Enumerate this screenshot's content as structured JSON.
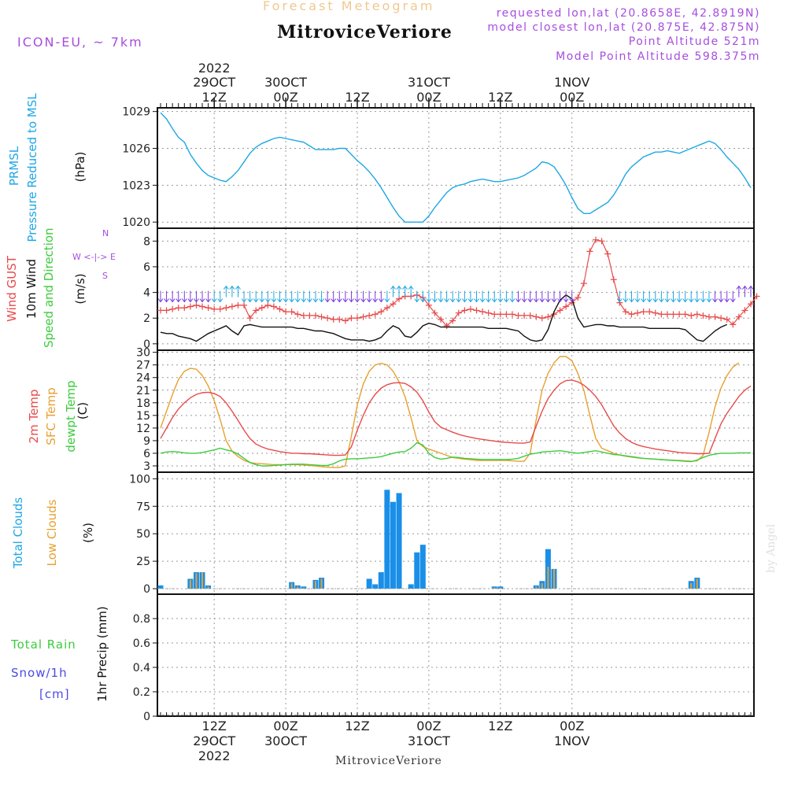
{
  "header": {
    "subtitle": "Forecast Meteogram",
    "title": "MitroviceVeriore",
    "model": "ICON-EU, ~ 7km",
    "requested": "requested lon,lat (20.8658E, 42.8919N)",
    "closest": "model closest lon,lat (20.875E, 42.875N)",
    "point_alt": "Point Altitude 521m",
    "model_alt": "Model Point Altitude 598.375m"
  },
  "footer": {
    "name": "MitroviceVeriore",
    "credit": "by Angel"
  },
  "time_axis": {
    "hour_step": 3,
    "major": [
      {
        "t": 9,
        "hour": "12Z",
        "date": "29OCT",
        "year": "2022"
      },
      {
        "t": 21,
        "hour": "00Z",
        "date": "30OCT",
        "year": ""
      },
      {
        "t": 33,
        "hour": "12Z",
        "date": "",
        "year": ""
      },
      {
        "t": 45,
        "hour": "00Z",
        "date": "31OCT",
        "year": ""
      },
      {
        "t": 57,
        "hour": "12Z",
        "date": "",
        "year": ""
      },
      {
        "t": 69,
        "hour": "00Z",
        "date": "1NOV",
        "year": ""
      }
    ]
  },
  "panel_labels": {
    "pressure": {
      "l1": "PRMSL",
      "l2": "Pressure Reduced to MSL",
      "unit": "(hPa)"
    },
    "wind": {
      "l1": "Wind GUST",
      "l2": "10m Wind",
      "l3": "Speed and Direction",
      "unit": "(m/s)",
      "compass_n": "N",
      "compass_s": "S",
      "compass_we": "W <-|-> E"
    },
    "temp": {
      "l1": "2m Temp",
      "l2": "SFC Temp",
      "l3": "dewpt Temp",
      "unit": "(C)"
    },
    "clouds": {
      "l1": "Total Clouds",
      "l2": "Low Clouds",
      "unit": "(%)"
    },
    "precip": {
      "l1": "Total  Rain",
      "l2": "Snow/1h",
      "l3": "[cm]",
      "unit": "1hr Precip (mm)"
    }
  },
  "colors": {
    "pressure": "#1ea7e4",
    "gust": "#e84a4a",
    "wind": "#111111",
    "t2m": "#e84a4a",
    "sfc": "#e8a030",
    "dewpt": "#3ccc3c",
    "total_clouds": "#1a8fe8",
    "low_clouds": "#e8a030",
    "rain": "#3ccc3c",
    "snow": "#4a4ae8"
  },
  "chart_data": [
    {
      "type": "line",
      "name": "pressure",
      "ylabel": "PRMSL Pressure Reduced to MSL (hPa)",
      "ylim": [
        1019.5,
        1029.3
      ],
      "yticks": [
        1020,
        1023,
        1026,
        1029
      ],
      "series": [
        {
          "name": "PRMSL",
          "values": [
            1028.9,
            1028.4,
            1027.6,
            1026.9,
            1026.5,
            1025.5,
            1024.8,
            1024.2,
            1023.8,
            1023.6,
            1023.4,
            1023.3,
            1023.7,
            1024.2,
            1024.9,
            1025.6,
            1026.1,
            1026.4,
            1026.6,
            1026.8,
            1026.9,
            1026.8,
            1026.7,
            1026.6,
            1026.5,
            1026.2,
            1025.9,
            1025.9,
            1025.9,
            1025.9,
            1026.0,
            1026.0,
            1025.5,
            1025.0,
            1024.6,
            1024.1,
            1023.5,
            1022.8,
            1022.0,
            1021.2,
            1020.5,
            1020.0,
            1020.0,
            1020.0,
            1020.0,
            1020.5,
            1021.2,
            1021.8,
            1022.4,
            1022.8,
            1023.0,
            1023.1,
            1023.3,
            1023.4,
            1023.5,
            1023.4,
            1023.3,
            1023.3,
            1023.4,
            1023.5,
            1023.6,
            1023.8,
            1024.1,
            1024.4,
            1024.9,
            1024.8,
            1024.5,
            1023.8,
            1023.0,
            1022.0,
            1021.1,
            1020.7,
            1020.7,
            1021.0,
            1021.3,
            1021.6,
            1022.2,
            1023.0,
            1023.9,
            1024.5,
            1024.9,
            1025.3,
            1025.5,
            1025.7,
            1025.7,
            1025.8,
            1025.7,
            1025.6,
            1025.8,
            1026.0,
            1026.2,
            1026.4,
            1026.6,
            1026.4,
            1025.9,
            1025.3,
            1024.8,
            1024.3,
            1023.6,
            1022.8
          ]
        }
      ]
    },
    {
      "type": "line",
      "name": "wind",
      "ylabel": "Wind GUST / 10m Wind Speed and Direction (m/s)",
      "ylim": [
        -0.5,
        9
      ],
      "yticks": [
        0,
        2,
        4,
        6,
        8
      ],
      "series": [
        {
          "name": "Wind GUST",
          "values": [
            2.6,
            2.6,
            2.7,
            2.8,
            2.8,
            2.9,
            3.0,
            2.9,
            2.8,
            2.7,
            2.7,
            2.8,
            2.9,
            3.0,
            3.0,
            2.0,
            2.6,
            2.8,
            3.0,
            2.9,
            2.7,
            2.5,
            2.5,
            2.3,
            2.2,
            2.2,
            2.2,
            2.1,
            2.0,
            1.9,
            1.9,
            1.8,
            2.0,
            2.0,
            2.1,
            2.2,
            2.3,
            2.5,
            2.8,
            3.1,
            3.5,
            3.7,
            3.7,
            3.8,
            3.6,
            3.0,
            2.4,
            1.9,
            1.4,
            1.8,
            2.4,
            2.6,
            2.7,
            2.6,
            2.5,
            2.4,
            2.3,
            2.3,
            2.3,
            2.3,
            2.2,
            2.2,
            2.2,
            2.1,
            2.0,
            2.1,
            2.3,
            2.6,
            2.9,
            3.2,
            3.6,
            4.7,
            7.2,
            8.1,
            8.0,
            7.0,
            5.0,
            3.2,
            2.5,
            2.3,
            2.4,
            2.5,
            2.5,
            2.4,
            2.3,
            2.3,
            2.3,
            2.3,
            2.3,
            2.2,
            2.3,
            2.2,
            2.1,
            2.1,
            2.0,
            1.9,
            1.5,
            2.1,
            2.6,
            3.1,
            3.7
          ]
        },
        {
          "name": "10m Wind",
          "values": [
            0.9,
            0.8,
            0.8,
            0.6,
            0.5,
            0.4,
            0.2,
            0.5,
            0.8,
            1.0,
            1.2,
            1.4,
            1.0,
            0.7,
            1.4,
            1.5,
            1.4,
            1.3,
            1.3,
            1.3,
            1.3,
            1.3,
            1.3,
            1.2,
            1.2,
            1.1,
            1.0,
            1.0,
            0.9,
            0.8,
            0.6,
            0.4,
            0.3,
            0.3,
            0.3,
            0.2,
            0.3,
            0.5,
            1.0,
            1.4,
            1.2,
            0.6,
            0.5,
            0.9,
            1.4,
            1.6,
            1.5,
            1.3,
            1.3,
            1.3,
            1.3,
            1.3,
            1.3,
            1.3,
            1.3,
            1.2,
            1.2,
            1.2,
            1.2,
            1.1,
            1.0,
            0.6,
            0.3,
            0.2,
            0.3,
            1.1,
            2.5,
            3.4,
            3.8,
            3.5,
            2.0,
            1.3,
            1.4,
            1.5,
            1.5,
            1.4,
            1.4,
            1.3,
            1.3,
            1.3,
            1.3,
            1.3,
            1.2,
            1.2,
            1.2,
            1.2,
            1.2,
            1.2,
            1.1,
            0.7,
            0.3,
            0.2,
            0.6,
            1.0,
            1.3,
            1.5
          ]
        }
      ]
    },
    {
      "type": "line",
      "name": "temperature",
      "ylabel": "2m Temp / SFC Temp / dewpt Temp (C)",
      "ylim": [
        1.5,
        30.5
      ],
      "yticks": [
        3,
        6,
        9,
        12,
        15,
        18,
        21,
        24,
        27,
        30
      ],
      "series": [
        {
          "name": "2m Temp",
          "values": [
            9.5,
            12.0,
            14.5,
            16.5,
            18.0,
            19.2,
            20.0,
            20.4,
            20.5,
            20.2,
            19.5,
            18.0,
            16.0,
            13.8,
            11.5,
            9.5,
            8.2,
            7.5,
            7.0,
            6.7,
            6.4,
            6.2,
            6.0,
            6.0,
            5.9,
            5.9,
            5.8,
            5.7,
            5.6,
            5.5,
            5.5,
            5.6,
            7.5,
            11.5,
            15.0,
            18.0,
            20.0,
            21.5,
            22.3,
            22.7,
            22.8,
            22.6,
            21.8,
            20.5,
            18.5,
            15.8,
            13.5,
            12.2,
            11.6,
            11.0,
            10.5,
            10.1,
            9.8,
            9.5,
            9.3,
            9.1,
            8.9,
            8.7,
            8.6,
            8.5,
            8.4,
            8.4,
            8.7,
            12.5,
            16.0,
            19.0,
            21.0,
            22.5,
            23.3,
            23.4,
            23.0,
            22.2,
            21.0,
            19.5,
            17.5,
            15.0,
            12.5,
            10.8,
            9.5,
            8.6,
            8.0,
            7.6,
            7.3,
            7.0,
            6.8,
            6.6,
            6.4,
            6.2,
            6.1,
            6.0,
            5.9,
            5.9,
            6.0,
            9.5,
            13.0,
            15.5,
            17.5,
            19.5,
            21.0,
            22.0
          ]
        },
        {
          "name": "SFC Temp",
          "values": [
            12.0,
            16.0,
            20.0,
            23.5,
            25.5,
            26.2,
            26.0,
            24.5,
            22.0,
            18.5,
            14.0,
            9.0,
            6.5,
            5.2,
            4.3,
            3.8,
            3.6,
            3.5,
            3.4,
            3.3,
            3.3,
            3.3,
            3.3,
            3.3,
            3.2,
            3.1,
            3.0,
            2.8,
            2.7,
            2.6,
            2.6,
            3.0,
            10.0,
            17.5,
            22.5,
            25.5,
            27.0,
            27.4,
            27.0,
            25.5,
            23.0,
            19.5,
            14.5,
            9.0,
            7.6,
            7.0,
            6.5,
            6.0,
            5.5,
            5.0,
            4.8,
            4.6,
            4.5,
            4.3,
            4.3,
            4.3,
            4.3,
            4.3,
            4.3,
            4.2,
            4.1,
            4.1,
            6.0,
            14.0,
            21.0,
            25.0,
            27.5,
            29.0,
            29.0,
            28.0,
            25.0,
            21.0,
            15.0,
            9.5,
            7.2,
            6.6,
            6.0,
            5.6,
            5.3,
            5.1,
            4.9,
            4.8,
            4.7,
            4.6,
            4.5,
            4.4,
            4.3,
            4.3,
            4.2,
            4.1,
            4.2,
            5.5,
            11.0,
            17.0,
            21.5,
            24.5,
            26.5,
            27.5
          ]
        },
        {
          "name": "dewpt Temp",
          "values": [
            6.0,
            6.3,
            6.4,
            6.3,
            6.1,
            6.0,
            6.0,
            6.2,
            6.5,
            6.8,
            7.2,
            6.8,
            6.5,
            5.8,
            4.8,
            3.8,
            3.3,
            3.0,
            3.0,
            3.1,
            3.2,
            3.3,
            3.4,
            3.4,
            3.4,
            3.3,
            3.2,
            3.1,
            3.1,
            3.5,
            4.2,
            4.6,
            4.7,
            4.7,
            4.8,
            4.9,
            5.0,
            5.2,
            5.6,
            6.0,
            6.3,
            6.4,
            7.2,
            8.5,
            8.0,
            6.0,
            5.0,
            4.6,
            4.8,
            5.1,
            5.0,
            4.8,
            4.7,
            4.6,
            4.5,
            4.5,
            4.5,
            4.5,
            4.5,
            4.6,
            4.8,
            5.3,
            5.8,
            6.0,
            6.3,
            6.4,
            6.5,
            6.6,
            6.4,
            6.2,
            6.0,
            6.2,
            6.4,
            6.6,
            6.3,
            6.0,
            5.7,
            5.6,
            5.4,
            5.2,
            5.0,
            4.8,
            4.7,
            4.6,
            4.5,
            4.4,
            4.3,
            4.2,
            4.1,
            4.0,
            4.4,
            5.0,
            5.5,
            5.8,
            6.0,
            6.0,
            6.0,
            6.1,
            6.1,
            6.1
          ]
        }
      ]
    },
    {
      "type": "bar",
      "name": "clouds",
      "ylabel": "Total Clouds / Low Clouds (%)",
      "ylim": [
        -5,
        106
      ],
      "yticks": [
        0,
        25,
        50,
        75,
        100
      ],
      "series": [
        {
          "name": "Total Clouds",
          "values": [
            3,
            0,
            0,
            0,
            0,
            9,
            15,
            15,
            3,
            0,
            0,
            0,
            0,
            0,
            0,
            0,
            0,
            0,
            0,
            0,
            0,
            0,
            6,
            3,
            2,
            0,
            8,
            10,
            0,
            0,
            0,
            0,
            0,
            0,
            0,
            9,
            4,
            15,
            90,
            79,
            87,
            0,
            4,
            33,
            40,
            0,
            0,
            0,
            0,
            0,
            0,
            0,
            0,
            0,
            0,
            0,
            2,
            2,
            0,
            0,
            0,
            0,
            0,
            3,
            7,
            36,
            18,
            0,
            0,
            0,
            0,
            0,
            0,
            0,
            0,
            0,
            0,
            0,
            0,
            0,
            0,
            0,
            0,
            0,
            0,
            0,
            0,
            0,
            0,
            7,
            10,
            0,
            0,
            0,
            0,
            0,
            0,
            0,
            0,
            0
          ]
        },
        {
          "name": "Low Clouds",
          "values": [
            0,
            0,
            0,
            0,
            0,
            8,
            14,
            15,
            2,
            0,
            0,
            0,
            0,
            0,
            0,
            0,
            0,
            0,
            0,
            0,
            0,
            0,
            5,
            2,
            1,
            0,
            7,
            9,
            0,
            0,
            0,
            0,
            0,
            0,
            0,
            0,
            0,
            0,
            0,
            0,
            0,
            0,
            0,
            0,
            0,
            0,
            0,
            0,
            0,
            0,
            0,
            0,
            0,
            0,
            0,
            0,
            1,
            1,
            0,
            0,
            0,
            0,
            0,
            2,
            5,
            20,
            18,
            0,
            0,
            0,
            0,
            0,
            0,
            0,
            0,
            0,
            0,
            0,
            0,
            0,
            0,
            0,
            0,
            0,
            0,
            0,
            0,
            0,
            0,
            5,
            9,
            0,
            0,
            0,
            0,
            0,
            0,
            0,
            0,
            0
          ]
        }
      ]
    },
    {
      "type": "bar",
      "name": "precip",
      "ylabel": "1hr Precip (mm)",
      "ylim": [
        0,
        1.0
      ],
      "yticks": [
        0,
        0.2,
        0.4,
        0.6,
        0.8
      ],
      "series": [
        {
          "name": "Total Rain",
          "values": []
        },
        {
          "name": "Snow/1h",
          "values": []
        }
      ]
    }
  ]
}
